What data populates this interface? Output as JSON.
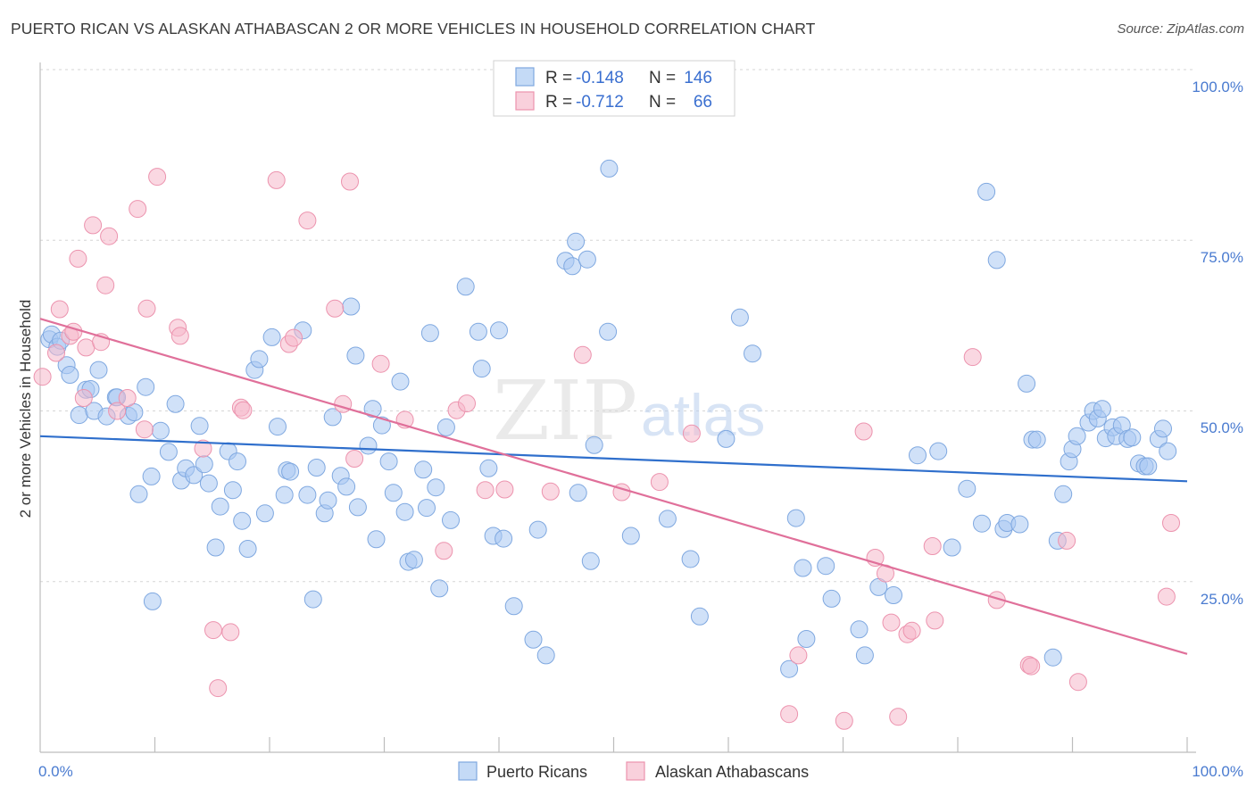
{
  "title": "PUERTO RICAN VS ALASKAN ATHABASCAN 2 OR MORE VEHICLES IN HOUSEHOLD CORRELATION CHART",
  "source": "Source: ZipAtlas.com",
  "watermark": {
    "left": "ZIP",
    "right": "atlas"
  },
  "legend": {
    "rows": [
      {
        "r_label": "R =",
        "r_value": "-0.148",
        "n_label": "N =",
        "n_value": "146",
        "color": "#a9c8f2"
      },
      {
        "r_label": "R =",
        "r_value": "-0.712",
        "n_label": "N =",
        "n_value": "66",
        "color": "#f5b8cb"
      }
    ]
  },
  "chart_data": {
    "type": "scatter",
    "title": "PUERTO RICAN VS ALASKAN ATHABASCAN 2 OR MORE VEHICLES IN HOUSEHOLD CORRELATION CHART",
    "xlabel": "",
    "ylabel": "2 or more Vehicles in Household",
    "xlim": [
      0,
      100
    ],
    "ylim": [
      0,
      105
    ],
    "x_tick_labels": [
      "0.0%",
      "100.0%"
    ],
    "y_tick_labels": [
      "25.0%",
      "50.0%",
      "75.0%",
      "100.0%"
    ],
    "y_gridlines": [
      25,
      50,
      75,
      100
    ],
    "grid": true,
    "legend_position": "top-center",
    "series": [
      {
        "name": "Puerto Ricans",
        "color": "#a9c8f2",
        "stroke": "#7fa8e0",
        "trend": {
          "x": [
            0,
            100
          ],
          "y": [
            46.3,
            39.7
          ],
          "color": "#2f6fcc"
        },
        "points": [
          [
            0.8,
            60.5
          ],
          [
            1.0,
            61.2
          ],
          [
            1.5,
            59.4
          ],
          [
            1.8,
            60.3
          ],
          [
            2.3,
            56.7
          ],
          [
            2.6,
            55.3
          ],
          [
            3.4,
            49.4
          ],
          [
            4.0,
            53.1
          ],
          [
            4.4,
            53.2
          ],
          [
            5.1,
            56.0
          ],
          [
            4.7,
            50.0
          ],
          [
            5.8,
            49.2
          ],
          [
            6.6,
            52.0
          ],
          [
            6.7,
            52.0
          ],
          [
            7.7,
            49.3
          ],
          [
            8.2,
            49.8
          ],
          [
            8.6,
            37.8
          ],
          [
            9.2,
            53.5
          ],
          [
            9.7,
            40.4
          ],
          [
            9.8,
            22.1
          ],
          [
            10.5,
            47.1
          ],
          [
            11.2,
            44.0
          ],
          [
            11.8,
            51.0
          ],
          [
            12.3,
            39.8
          ],
          [
            12.7,
            41.6
          ],
          [
            13.4,
            40.6
          ],
          [
            13.9,
            47.8
          ],
          [
            14.3,
            42.2
          ],
          [
            14.7,
            39.4
          ],
          [
            15.3,
            30.0
          ],
          [
            15.7,
            36.0
          ],
          [
            16.4,
            44.1
          ],
          [
            16.8,
            38.4
          ],
          [
            17.2,
            42.6
          ],
          [
            17.6,
            33.9
          ],
          [
            18.1,
            29.8
          ],
          [
            18.7,
            56.0
          ],
          [
            19.1,
            57.6
          ],
          [
            19.6,
            35.0
          ],
          [
            20.2,
            60.8
          ],
          [
            20.7,
            47.7
          ],
          [
            21.3,
            37.7
          ],
          [
            21.5,
            41.3
          ],
          [
            21.8,
            41.1
          ],
          [
            22.9,
            61.8
          ],
          [
            23.3,
            37.7
          ],
          [
            23.8,
            22.4
          ],
          [
            24.1,
            41.7
          ],
          [
            24.8,
            35.0
          ],
          [
            25.1,
            36.9
          ],
          [
            25.5,
            49.1
          ],
          [
            26.2,
            40.5
          ],
          [
            26.7,
            38.9
          ],
          [
            27.1,
            65.3
          ],
          [
            27.5,
            58.1
          ],
          [
            27.7,
            35.9
          ],
          [
            28.6,
            44.9
          ],
          [
            29.0,
            50.3
          ],
          [
            29.3,
            31.2
          ],
          [
            29.8,
            47.9
          ],
          [
            30.4,
            42.6
          ],
          [
            30.8,
            38.0
          ],
          [
            31.4,
            54.3
          ],
          [
            31.8,
            35.2
          ],
          [
            32.1,
            27.9
          ],
          [
            32.6,
            28.2
          ],
          [
            33.4,
            41.4
          ],
          [
            33.7,
            35.8
          ],
          [
            34.0,
            61.4
          ],
          [
            34.5,
            38.8
          ],
          [
            34.8,
            24.0
          ],
          [
            35.4,
            47.6
          ],
          [
            35.8,
            34.0
          ],
          [
            37.1,
            68.2
          ],
          [
            38.2,
            61.6
          ],
          [
            38.5,
            56.2
          ],
          [
            39.1,
            41.6
          ],
          [
            39.5,
            31.7
          ],
          [
            40.0,
            61.8
          ],
          [
            40.4,
            31.3
          ],
          [
            41.3,
            21.4
          ],
          [
            43.0,
            16.5
          ],
          [
            43.4,
            32.6
          ],
          [
            44.1,
            14.2
          ],
          [
            45.8,
            72.0
          ],
          [
            46.4,
            71.2
          ],
          [
            46.7,
            74.8
          ],
          [
            46.9,
            38.0
          ],
          [
            47.7,
            72.2
          ],
          [
            48.0,
            28.0
          ],
          [
            48.3,
            45.0
          ],
          [
            49.5,
            61.6
          ],
          [
            49.6,
            85.5
          ],
          [
            51.5,
            31.7
          ],
          [
            54.7,
            34.2
          ],
          [
            56.7,
            28.3
          ],
          [
            57.5,
            19.9
          ],
          [
            59.8,
            45.9
          ],
          [
            61.0,
            63.7
          ],
          [
            62.1,
            58.4
          ],
          [
            65.3,
            12.2
          ],
          [
            65.9,
            34.3
          ],
          [
            66.5,
            27.0
          ],
          [
            66.8,
            16.6
          ],
          [
            68.5,
            27.3
          ],
          [
            69.0,
            22.5
          ],
          [
            71.4,
            18.0
          ],
          [
            71.9,
            14.2
          ],
          [
            73.1,
            24.2
          ],
          [
            74.4,
            23.0
          ],
          [
            76.5,
            43.5
          ],
          [
            78.3,
            44.1
          ],
          [
            79.5,
            30.0
          ],
          [
            80.8,
            38.6
          ],
          [
            82.1,
            33.5
          ],
          [
            82.5,
            82.1
          ],
          [
            83.4,
            72.1
          ],
          [
            84.0,
            32.7
          ],
          [
            84.3,
            33.6
          ],
          [
            85.4,
            33.4
          ],
          [
            86.0,
            54.0
          ],
          [
            86.5,
            45.8
          ],
          [
            86.9,
            45.8
          ],
          [
            88.3,
            13.9
          ],
          [
            88.7,
            31.0
          ],
          [
            89.2,
            37.8
          ],
          [
            89.7,
            42.6
          ],
          [
            90.0,
            44.4
          ],
          [
            90.4,
            46.3
          ],
          [
            91.4,
            48.3
          ],
          [
            91.8,
            50.0
          ],
          [
            92.2,
            48.9
          ],
          [
            92.6,
            50.3
          ],
          [
            92.9,
            46.0
          ],
          [
            93.5,
            47.6
          ],
          [
            93.8,
            46.3
          ],
          [
            94.3,
            47.9
          ],
          [
            94.8,
            45.9
          ],
          [
            95.2,
            46.1
          ],
          [
            95.8,
            42.3
          ],
          [
            96.3,
            41.9
          ],
          [
            96.6,
            41.9
          ],
          [
            97.5,
            45.9
          ],
          [
            97.9,
            47.4
          ],
          [
            98.3,
            44.1
          ]
        ]
      },
      {
        "name": "Alaskan Athabascans",
        "color": "#f5b8cb",
        "stroke": "#ec93ae",
        "trend": {
          "x": [
            0,
            100
          ],
          "y": [
            63.5,
            14.4
          ],
          "color": "#e0709a"
        },
        "points": [
          [
            0.2,
            55.0
          ],
          [
            1.4,
            58.5
          ],
          [
            1.7,
            64.9
          ],
          [
            2.6,
            61.0
          ],
          [
            2.9,
            61.6
          ],
          [
            3.3,
            72.3
          ],
          [
            3.8,
            51.9
          ],
          [
            4.0,
            59.3
          ],
          [
            4.6,
            77.2
          ],
          [
            5.3,
            60.1
          ],
          [
            5.7,
            68.4
          ],
          [
            6.0,
            75.6
          ],
          [
            6.7,
            50.0
          ],
          [
            7.6,
            51.9
          ],
          [
            8.5,
            79.6
          ],
          [
            9.1,
            47.3
          ],
          [
            9.3,
            65.0
          ],
          [
            10.2,
            84.3
          ],
          [
            12.0,
            62.2
          ],
          [
            12.2,
            61.0
          ],
          [
            14.2,
            44.5
          ],
          [
            15.1,
            17.9
          ],
          [
            15.5,
            9.4
          ],
          [
            16.6,
            17.6
          ],
          [
            17.5,
            50.5
          ],
          [
            17.7,
            50.1
          ],
          [
            20.6,
            83.8
          ],
          [
            21.7,
            59.8
          ],
          [
            22.1,
            60.7
          ],
          [
            23.3,
            77.9
          ],
          [
            25.7,
            65.0
          ],
          [
            26.4,
            51.0
          ],
          [
            27.0,
            83.6
          ],
          [
            27.4,
            43.0
          ],
          [
            29.7,
            56.9
          ],
          [
            31.8,
            48.7
          ],
          [
            35.2,
            29.5
          ],
          [
            36.3,
            50.1
          ],
          [
            37.2,
            51.1
          ],
          [
            38.8,
            38.4
          ],
          [
            40.5,
            38.5
          ],
          [
            44.5,
            38.2
          ],
          [
            47.3,
            58.2
          ],
          [
            50.7,
            38.1
          ],
          [
            54.0,
            39.6
          ],
          [
            56.8,
            46.7
          ],
          [
            65.3,
            5.6
          ],
          [
            66.1,
            14.2
          ],
          [
            70.1,
            4.6
          ],
          [
            71.8,
            47.0
          ],
          [
            72.8,
            28.5
          ],
          [
            73.7,
            26.2
          ],
          [
            74.2,
            19.0
          ],
          [
            74.8,
            5.2
          ],
          [
            75.6,
            17.3
          ],
          [
            76.0,
            17.8
          ],
          [
            77.8,
            30.2
          ],
          [
            78.0,
            19.3
          ],
          [
            81.3,
            57.9
          ],
          [
            83.4,
            22.3
          ],
          [
            86.2,
            12.8
          ],
          [
            86.4,
            12.6
          ],
          [
            89.5,
            31.0
          ],
          [
            90.5,
            10.3
          ],
          [
            98.2,
            22.8
          ],
          [
            98.6,
            33.6
          ]
        ]
      }
    ]
  },
  "bottom_legend": [
    {
      "label": "Puerto Ricans",
      "color": "#a9c8f2"
    },
    {
      "label": "Alaskan Athabascans",
      "color": "#f5b8cb"
    }
  ]
}
